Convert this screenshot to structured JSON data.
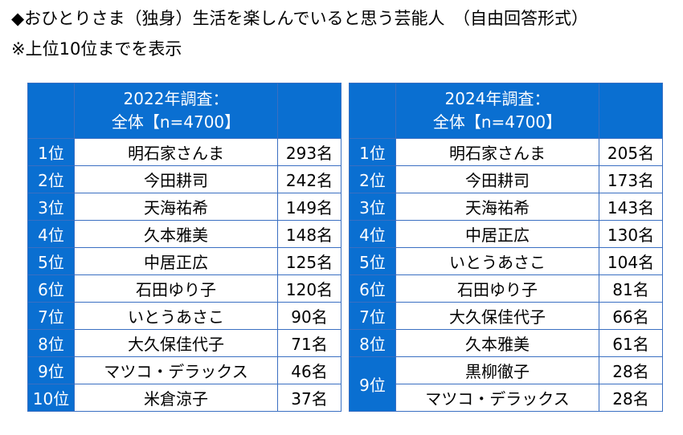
{
  "title": "◆おひとりさま（独身）生活を楽しんでいると思う芸能人　（自由回答形式）",
  "note": "※上位10位までを表示",
  "colors": {
    "header_blue": "#0a6fd1",
    "border": "#3a6fc2"
  },
  "table_2022": {
    "header_line1": "2022年調査：",
    "header_line2": "全体【n=4700】",
    "rows": [
      {
        "rank": "1位",
        "name": "明石家さんま",
        "count": "293名"
      },
      {
        "rank": "2位",
        "name": "今田耕司",
        "count": "242名"
      },
      {
        "rank": "3位",
        "name": "天海祐希",
        "count": "149名"
      },
      {
        "rank": "4位",
        "name": "久本雅美",
        "count": "148名"
      },
      {
        "rank": "5位",
        "name": "中居正広",
        "count": "125名"
      },
      {
        "rank": "6位",
        "name": "石田ゆり子",
        "count": "120名"
      },
      {
        "rank": "7位",
        "name": "いとうあさこ",
        "count": "90名"
      },
      {
        "rank": "8位",
        "name": "大久保佳代子",
        "count": "71名"
      },
      {
        "rank": "9位",
        "name": "マツコ・デラックス",
        "count": "46名"
      },
      {
        "rank": "10位",
        "name": "米倉涼子",
        "count": "37名"
      }
    ]
  },
  "table_2024": {
    "header_line1": "2024年調査：",
    "header_line2": "全体【n=4700】",
    "rows": [
      {
        "rank": "1位",
        "name": "明石家さんま",
        "count": "205名"
      },
      {
        "rank": "2位",
        "name": "今田耕司",
        "count": "173名"
      },
      {
        "rank": "3位",
        "name": "天海祐希",
        "count": "143名"
      },
      {
        "rank": "4位",
        "name": "中居正広",
        "count": "130名"
      },
      {
        "rank": "5位",
        "name": "いとうあさこ",
        "count": "104名"
      },
      {
        "rank": "6位",
        "name": "石田ゆり子",
        "count": "81名"
      },
      {
        "rank": "7位",
        "name": "大久保佳代子",
        "count": "66名"
      },
      {
        "rank": "8位",
        "name": "久本雅美",
        "count": "61名"
      },
      {
        "rank": "9位",
        "name": "黒柳徹子",
        "count": "28名"
      },
      {
        "rank": "",
        "name": "マツコ・デラックス",
        "count": "28名"
      }
    ]
  }
}
